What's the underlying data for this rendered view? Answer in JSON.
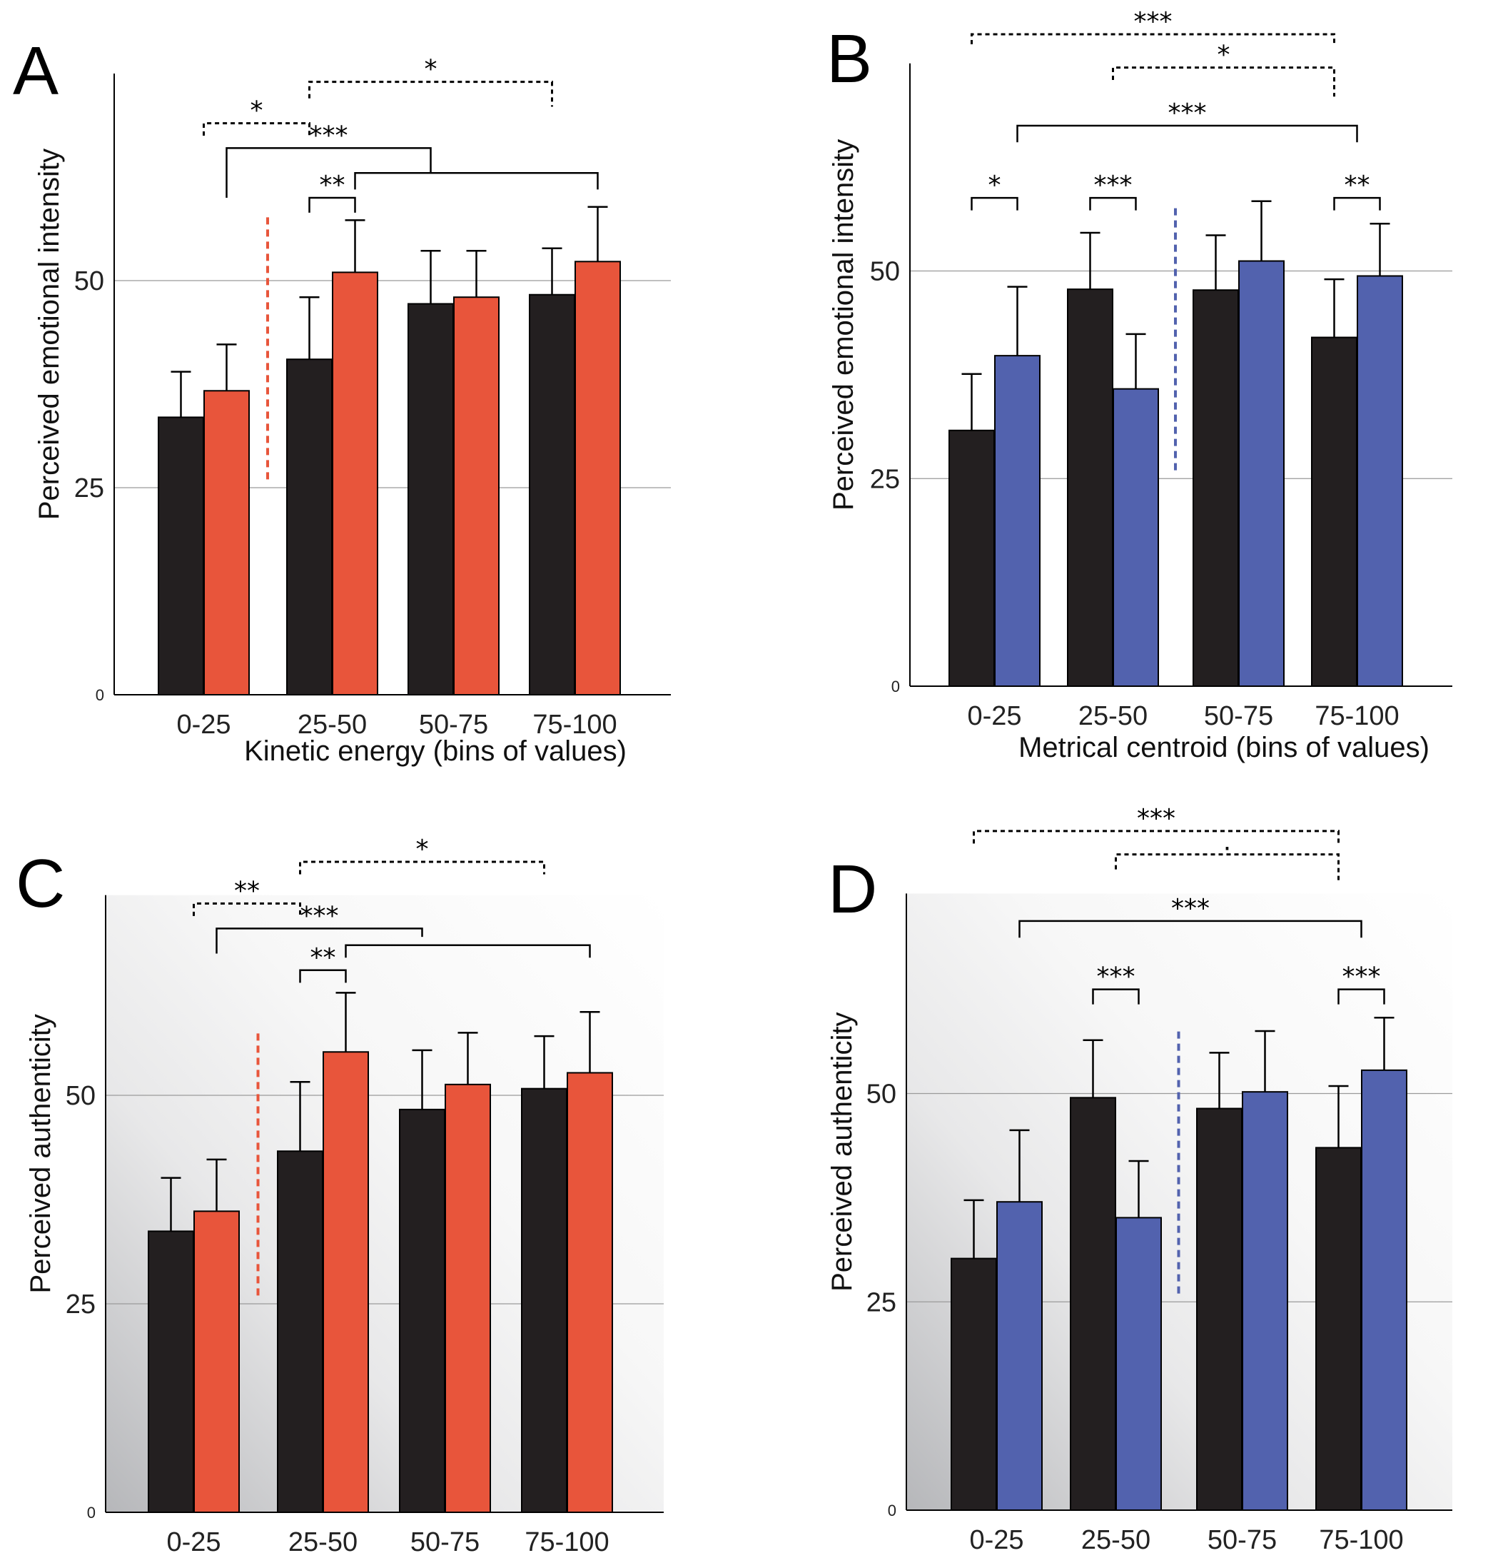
{
  "colors": {
    "control": "#231f20",
    "orange": "#e8553b",
    "blue": "#5262ae",
    "grid": "#9a9a9a"
  },
  "chart_data": [
    {
      "panel": "A",
      "type": "bar",
      "ylabel": "Perceived emotional intensity",
      "xlabel": "Kinetic energy (bins of values)",
      "categories": [
        "0-25",
        "25-50",
        "50-75",
        "75-100"
      ],
      "yticks": [
        "0",
        "25",
        "50"
      ],
      "ylim": [
        0,
        75
      ],
      "shaded": false,
      "accent": "orange",
      "divider_after_group": 0,
      "divider_range": [
        26,
        58
      ],
      "series": [
        {
          "name": "black",
          "values": [
            33.5,
            40.5,
            47.2,
            48.3
          ],
          "errors": [
            5.5,
            7.5,
            6.4,
            5.6
          ]
        },
        {
          "name": "color",
          "values": [
            36.7,
            51.0,
            48.0,
            52.3
          ],
          "errors": [
            5.6,
            6.3,
            5.6,
            6.6
          ]
        }
      ],
      "comparisons": [
        {
          "label": "*",
          "style": "dashed",
          "level": 69,
          "a": [
            0,
            0
          ],
          "b": [
            1,
            -1
          ]
        },
        {
          "label": "*",
          "style": "dashed",
          "level": 74,
          "a": [
            1,
            -1
          ],
          "b": [
            3,
            -1
          ],
          "drop_a": 2,
          "drop_b": 3
        },
        {
          "label": "***",
          "style": "solid",
          "level": 66,
          "a": [
            0,
            1
          ],
          "b": [
            2,
            -1
          ],
          "drop_a": 6,
          "drop_b": 3
        },
        {
          "label": "**",
          "style": "solid",
          "level": 60,
          "a": [
            1,
            -1
          ],
          "b": [
            1,
            1
          ],
          "drop_a": 1.8,
          "drop_b": 1.8
        },
        {
          "label": "",
          "style": "solid",
          "level": 63,
          "a": [
            1,
            1
          ],
          "b": [
            3,
            1
          ],
          "drop_a": 2,
          "drop_b": 2
        }
      ]
    },
    {
      "panel": "B",
      "type": "bar",
      "ylabel": "Perceived emotional intensity",
      "xlabel": "Metrical centroid (bins of values)",
      "categories": [
        "0-25",
        "25-50",
        "50-75",
        "75-100"
      ],
      "yticks": [
        "0",
        "25",
        "50"
      ],
      "ylim": [
        0,
        75
      ],
      "shaded": false,
      "accent": "blue",
      "divider_after_group": 1,
      "divider_range": [
        26,
        58
      ],
      "series": [
        {
          "name": "black",
          "values": [
            30.8,
            47.8,
            47.7,
            42.0
          ],
          "errors": [
            6.8,
            6.8,
            6.6,
            7.0
          ]
        },
        {
          "name": "color",
          "values": [
            39.8,
            35.8,
            51.2,
            49.4
          ],
          "errors": [
            8.3,
            6.6,
            7.2,
            6.3
          ]
        }
      ],
      "comparisons": [
        {
          "label": "***",
          "style": "dashed",
          "level": 78.5,
          "a": [
            0,
            -1
          ],
          "b": [
            3,
            -1
          ],
          "drop_a": 1.2,
          "drop_b": 1.2
        },
        {
          "label": "*",
          "style": "dashed",
          "level": 74.5,
          "a": [
            1,
            0
          ],
          "b": [
            3,
            -1
          ],
          "drop_a": 1.5,
          "drop_b": 3.5
        },
        {
          "label": "***",
          "style": "solid",
          "level": 67.5,
          "a": [
            0,
            1
          ],
          "b": [
            3,
            0
          ],
          "drop_a": 2,
          "drop_b": 2
        },
        {
          "label": "*",
          "style": "solid",
          "level": 58.8,
          "a": [
            0,
            -1
          ],
          "b": [
            0,
            1
          ],
          "drop_a": 1.5,
          "drop_b": 1.5
        },
        {
          "label": "***",
          "style": "solid",
          "level": 58.8,
          "a": [
            1,
            -1
          ],
          "b": [
            1,
            1
          ],
          "drop_a": 1.5,
          "drop_b": 1.5
        },
        {
          "label": "**",
          "style": "solid",
          "level": 58.8,
          "a": [
            3,
            -1
          ],
          "b": [
            3,
            1
          ],
          "drop_a": 1.5,
          "drop_b": 1.5
        }
      ]
    },
    {
      "panel": "C",
      "type": "bar",
      "ylabel": "Perceived authenticity",
      "xlabel": "",
      "categories": [
        "0-25",
        "25-50",
        "50-75",
        "75-100"
      ],
      "yticks": [
        "0",
        "25",
        "50"
      ],
      "ylim": [
        0,
        74
      ],
      "shaded": true,
      "accent": "orange",
      "divider_after_group": 0,
      "divider_range": [
        26,
        58
      ],
      "series": [
        {
          "name": "black",
          "values": [
            33.7,
            43.3,
            48.3,
            50.8
          ],
          "errors": [
            6.4,
            8.3,
            7.1,
            6.3
          ]
        },
        {
          "name": "color",
          "values": [
            36.1,
            55.2,
            51.3,
            52.7
          ],
          "errors": [
            6.2,
            7.1,
            6.2,
            7.3
          ]
        }
      ],
      "comparisons": [
        {
          "label": "**",
          "style": "dashed",
          "level": 73,
          "a": [
            0,
            0
          ],
          "b": [
            1,
            -1
          ]
        },
        {
          "label": "*",
          "style": "dashed",
          "level": 78,
          "a": [
            1,
            -1
          ],
          "b": [
            3,
            -1
          ],
          "drop_a": 1.5,
          "drop_b": 1.5
        },
        {
          "label": "***",
          "style": "solid",
          "level": 70,
          "a": [
            0,
            1
          ],
          "b": [
            2,
            -1
          ],
          "drop_a": 3,
          "drop_b": 1
        },
        {
          "label": "**",
          "style": "solid",
          "level": 65,
          "a": [
            1,
            -1
          ],
          "b": [
            1,
            1
          ],
          "drop_a": 1.5,
          "drop_b": 1.5
        },
        {
          "label": "",
          "style": "solid",
          "level": 68,
          "a": [
            1,
            1
          ],
          "b": [
            3,
            1
          ],
          "drop_a": 1.5,
          "drop_b": 1.5
        }
      ]
    },
    {
      "panel": "D",
      "type": "bar",
      "ylabel": "Perceived authenticity",
      "xlabel": "",
      "categories": [
        "0-25",
        "25-50",
        "50-75",
        "75-100"
      ],
      "yticks": [
        "0",
        "25",
        "50"
      ],
      "ylim": [
        0,
        74
      ],
      "shaded": true,
      "accent": "blue",
      "divider_after_group": 1,
      "divider_range": [
        26,
        58
      ],
      "series": [
        {
          "name": "black",
          "values": [
            30.2,
            49.5,
            48.2,
            43.5
          ],
          "errors": [
            7.0,
            6.9,
            6.7,
            7.4
          ]
        },
        {
          "name": "color",
          "values": [
            37.0,
            35.1,
            50.2,
            52.8
          ],
          "errors": [
            8.6,
            6.8,
            7.3,
            6.3
          ]
        }
      ],
      "comparisons": [
        {
          "label": "***",
          "style": "dashed",
          "level": 81.5,
          "a": [
            0,
            -1
          ],
          "b": [
            3,
            -1
          ],
          "drop_a": 1.5,
          "drop_b": 1.5
        },
        {
          "label": ".",
          "style": "dashed",
          "level": 78.7,
          "a": [
            1,
            0
          ],
          "b": [
            3,
            -1
          ],
          "drop_a": 1.8,
          "drop_b": 3.5
        },
        {
          "label": "***",
          "style": "solid",
          "level": 70.7,
          "a": [
            0,
            1
          ],
          "b": [
            3,
            0
          ],
          "drop_a": 2,
          "drop_b": 2
        },
        {
          "label": "***",
          "style": "solid",
          "level": 62.5,
          "a": [
            1,
            -1
          ],
          "b": [
            1,
            1
          ],
          "drop_a": 1.8,
          "drop_b": 1.8
        },
        {
          "label": "***",
          "style": "solid",
          "level": 62.5,
          "a": [
            3,
            -1
          ],
          "b": [
            3,
            1
          ],
          "drop_a": 1.8,
          "drop_b": 1.8
        }
      ]
    }
  ]
}
